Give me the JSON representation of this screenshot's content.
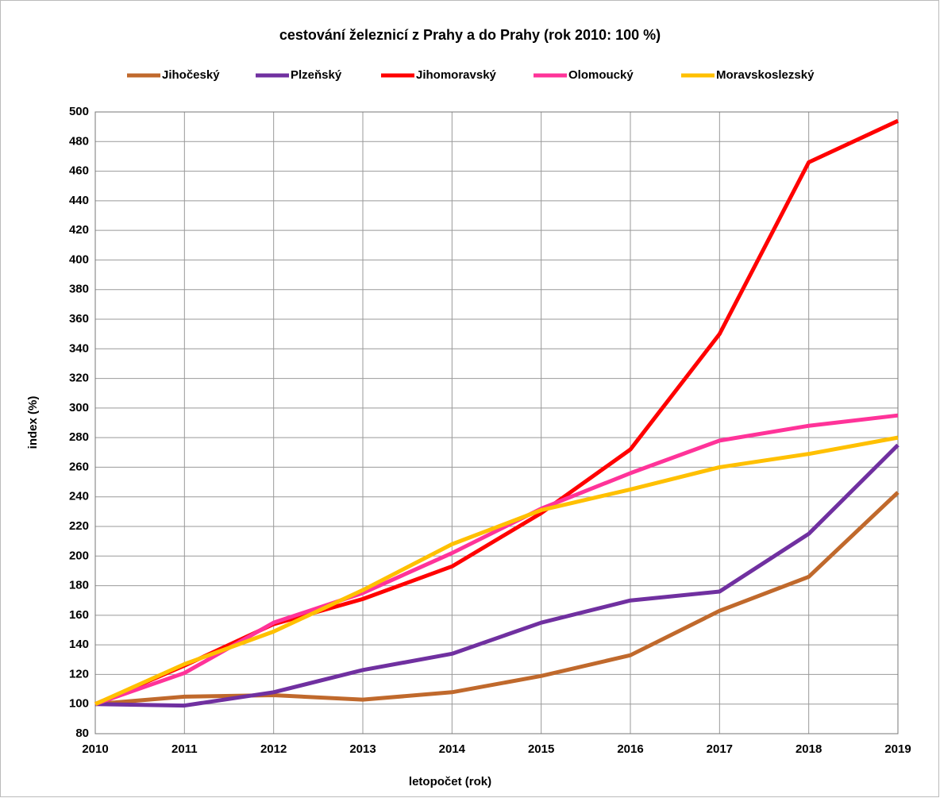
{
  "chart_data": {
    "type": "line",
    "title": "cestování železnicí z Prahy a do Prahy (rok 2010: 100 %)",
    "x_label": "letopočet (rok)",
    "y_label": "index (%)",
    "x": [
      2010,
      2011,
      2012,
      2013,
      2014,
      2015,
      2016,
      2017,
      2018,
      2019
    ],
    "series": [
      {
        "name": "Jihočeský",
        "color": "#c0692c",
        "values": [
          100,
          105,
          106,
          103,
          108,
          119,
          133,
          163,
          186,
          243
        ]
      },
      {
        "name": "Plzeňský",
        "color": "#7030a0",
        "values": [
          100,
          99,
          108,
          123,
          134,
          155,
          170,
          176,
          215,
          275
        ]
      },
      {
        "name": "Jihomoravský",
        "color": "#ff0000",
        "values": [
          100,
          126,
          154,
          171,
          193,
          229,
          272,
          350,
          466,
          494
        ]
      },
      {
        "name": "Olomoucký",
        "color": "#ff3399",
        "values": [
          100,
          121,
          155,
          175,
          202,
          232,
          256,
          278,
          288,
          295
        ]
      },
      {
        "name": "Moravskoslezský",
        "color": "#ffc000",
        "values": [
          100,
          127,
          149,
          177,
          208,
          231,
          245,
          260,
          269,
          280
        ]
      }
    ],
    "xlim": [
      2010,
      2019
    ],
    "xticks": [
      2010,
      2011,
      2012,
      2013,
      2014,
      2015,
      2016,
      2017,
      2018,
      2019
    ],
    "ylim": [
      80,
      500
    ],
    "yticks": [
      80,
      100,
      120,
      140,
      160,
      180,
      200,
      220,
      240,
      260,
      280,
      300,
      320,
      340,
      360,
      380,
      400,
      420,
      440,
      460,
      480,
      500
    ],
    "grid": true,
    "legend": "top"
  }
}
